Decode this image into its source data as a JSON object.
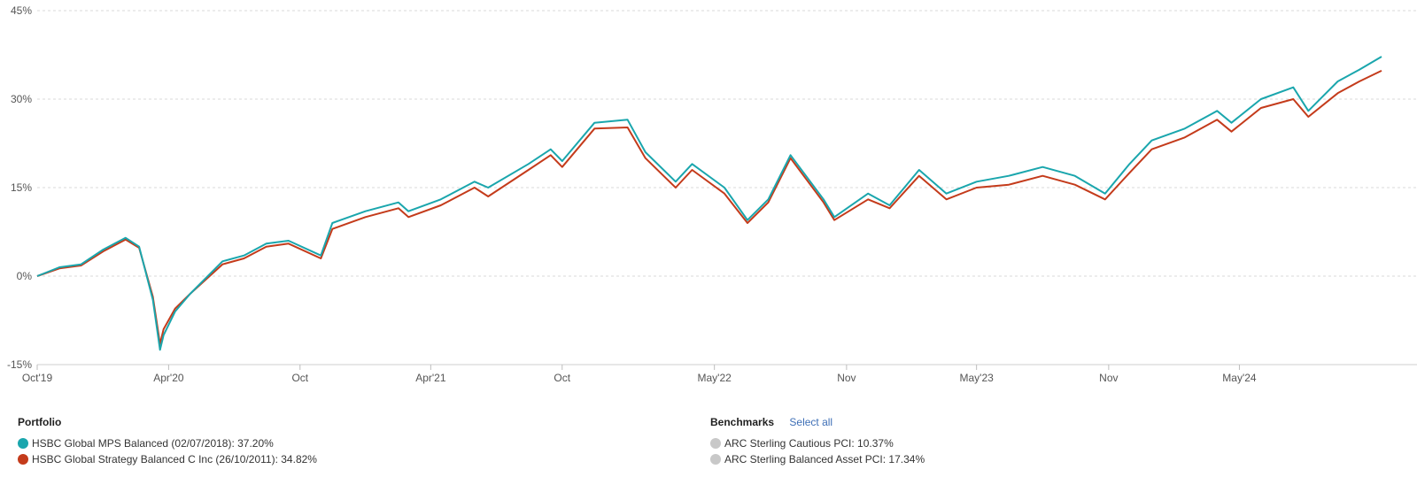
{
  "chart_data": {
    "type": "line",
    "y_unit": "%",
    "ylim": [
      -15,
      45
    ],
    "y_ticks": [
      -15,
      0,
      15,
      30,
      45
    ],
    "y_tick_labels": [
      "-15%",
      "0%",
      "15%",
      "30%",
      "45%"
    ],
    "x_range": [
      "2019-10-01",
      "2024-11-15"
    ],
    "x_ticks": [
      {
        "date": "2019-10-01",
        "label": "Oct'19"
      },
      {
        "date": "2020-04-01",
        "label": "Apr'20"
      },
      {
        "date": "2020-10-01",
        "label": "Oct"
      },
      {
        "date": "2021-04-01",
        "label": "Apr'21"
      },
      {
        "date": "2021-10-01",
        "label": "Oct"
      },
      {
        "date": "2022-05-01",
        "label": "May'22"
      },
      {
        "date": "2022-11-01",
        "label": "Nov"
      },
      {
        "date": "2023-05-01",
        "label": "May'23"
      },
      {
        "date": "2023-11-01",
        "label": "Nov"
      },
      {
        "date": "2024-05-01",
        "label": "May'24"
      }
    ],
    "grid": true,
    "series": [
      {
        "name": "HSBC Global MPS Balanced (02/07/2018)",
        "color": "#1aa6ad",
        "points": [
          [
            "2019-10-01",
            0
          ],
          [
            "2019-11-01",
            1.5
          ],
          [
            "2019-12-01",
            2
          ],
          [
            "2020-01-01",
            4.5
          ],
          [
            "2020-02-01",
            6.5
          ],
          [
            "2020-02-20",
            5
          ],
          [
            "2020-03-10",
            -4
          ],
          [
            "2020-03-20",
            -12.5
          ],
          [
            "2020-03-25",
            -10
          ],
          [
            "2020-04-10",
            -6
          ],
          [
            "2020-05-01",
            -3
          ],
          [
            "2020-06-15",
            2.5
          ],
          [
            "2020-07-15",
            3.5
          ],
          [
            "2020-08-15",
            5.5
          ],
          [
            "2020-09-15",
            6
          ],
          [
            "2020-10-30",
            3.5
          ],
          [
            "2020-11-15",
            9
          ],
          [
            "2020-12-31",
            11
          ],
          [
            "2021-02-15",
            12.5
          ],
          [
            "2021-03-01",
            11
          ],
          [
            "2021-04-15",
            13
          ],
          [
            "2021-06-01",
            16
          ],
          [
            "2021-06-20",
            15
          ],
          [
            "2021-08-15",
            19
          ],
          [
            "2021-09-15",
            21.5
          ],
          [
            "2021-10-01",
            19.5
          ],
          [
            "2021-11-15",
            26
          ],
          [
            "2021-12-31",
            26.5
          ],
          [
            "2022-01-25",
            21
          ],
          [
            "2022-03-08",
            16
          ],
          [
            "2022-03-31",
            19
          ],
          [
            "2022-05-15",
            15
          ],
          [
            "2022-06-16",
            9.5
          ],
          [
            "2022-07-15",
            13
          ],
          [
            "2022-08-15",
            20.5
          ],
          [
            "2022-09-30",
            13
          ],
          [
            "2022-10-15",
            10
          ],
          [
            "2022-12-01",
            14
          ],
          [
            "2022-12-31",
            12
          ],
          [
            "2023-02-10",
            18
          ],
          [
            "2023-03-20",
            14
          ],
          [
            "2023-05-01",
            16
          ],
          [
            "2023-06-15",
            17
          ],
          [
            "2023-08-01",
            18.5
          ],
          [
            "2023-09-15",
            17
          ],
          [
            "2023-10-27",
            14
          ],
          [
            "2023-11-30",
            19
          ],
          [
            "2023-12-31",
            23
          ],
          [
            "2024-02-15",
            25
          ],
          [
            "2024-03-31",
            28
          ],
          [
            "2024-04-20",
            26
          ],
          [
            "2024-05-31",
            30
          ],
          [
            "2024-07-15",
            32
          ],
          [
            "2024-08-05",
            28
          ],
          [
            "2024-09-15",
            33
          ],
          [
            "2024-10-15",
            35
          ],
          [
            "2024-11-15",
            37.2
          ]
        ]
      },
      {
        "name": "HSBC Global Strategy Balanced C Inc (26/10/2011)",
        "color": "#c43b1b",
        "points": [
          [
            "2019-10-01",
            0
          ],
          [
            "2019-11-01",
            1.3
          ],
          [
            "2019-12-01",
            1.8
          ],
          [
            "2020-01-01",
            4.2
          ],
          [
            "2020-02-01",
            6.2
          ],
          [
            "2020-02-20",
            4.8
          ],
          [
            "2020-03-10",
            -3.5
          ],
          [
            "2020-03-20",
            -11.5
          ],
          [
            "2020-03-25",
            -9
          ],
          [
            "2020-04-10",
            -5.5
          ],
          [
            "2020-05-01",
            -3
          ],
          [
            "2020-06-15",
            2
          ],
          [
            "2020-07-15",
            3
          ],
          [
            "2020-08-15",
            5
          ],
          [
            "2020-09-15",
            5.5
          ],
          [
            "2020-10-30",
            3
          ],
          [
            "2020-11-15",
            8
          ],
          [
            "2020-12-31",
            10
          ],
          [
            "2021-02-15",
            11.5
          ],
          [
            "2021-03-01",
            10
          ],
          [
            "2021-04-15",
            12
          ],
          [
            "2021-06-01",
            15
          ],
          [
            "2021-06-20",
            13.5
          ],
          [
            "2021-08-15",
            18
          ],
          [
            "2021-09-15",
            20.5
          ],
          [
            "2021-10-01",
            18.5
          ],
          [
            "2021-11-15",
            25
          ],
          [
            "2021-12-31",
            25.2
          ],
          [
            "2022-01-25",
            20
          ],
          [
            "2022-03-08",
            15
          ],
          [
            "2022-03-31",
            18
          ],
          [
            "2022-05-15",
            14
          ],
          [
            "2022-06-16",
            9
          ],
          [
            "2022-07-15",
            12.5
          ],
          [
            "2022-08-15",
            20
          ],
          [
            "2022-09-30",
            12.5
          ],
          [
            "2022-10-15",
            9.5
          ],
          [
            "2022-12-01",
            13
          ],
          [
            "2022-12-31",
            11.5
          ],
          [
            "2023-02-10",
            17
          ],
          [
            "2023-03-20",
            13
          ],
          [
            "2023-05-01",
            15
          ],
          [
            "2023-06-15",
            15.5
          ],
          [
            "2023-08-01",
            17
          ],
          [
            "2023-09-15",
            15.5
          ],
          [
            "2023-10-27",
            13
          ],
          [
            "2023-11-30",
            17.5
          ],
          [
            "2023-12-31",
            21.5
          ],
          [
            "2024-02-15",
            23.5
          ],
          [
            "2024-03-31",
            26.5
          ],
          [
            "2024-04-20",
            24.5
          ],
          [
            "2024-05-31",
            28.5
          ],
          [
            "2024-07-15",
            30
          ],
          [
            "2024-08-05",
            27
          ],
          [
            "2024-09-15",
            31
          ],
          [
            "2024-10-15",
            33
          ],
          [
            "2024-11-15",
            34.82
          ]
        ]
      }
    ]
  },
  "legend": {
    "portfolio_title": "Portfolio",
    "portfolio_items": [
      {
        "label": "HSBC Global MPS Balanced (02/07/2018): 37.20%",
        "color": "#1aa6ad"
      },
      {
        "label": "HSBC Global Strategy Balanced C Inc (26/10/2011): 34.82%",
        "color": "#c43b1b"
      }
    ],
    "benchmarks_title": "Benchmarks",
    "select_all": "Select all",
    "benchmark_items": [
      {
        "label": "ARC Sterling Cautious PCI: 10.37%",
        "color": "#c8c8c8"
      },
      {
        "label": "ARC Sterling Balanced Asset PCI: 17.34%",
        "color": "#c8c8c8"
      }
    ]
  }
}
